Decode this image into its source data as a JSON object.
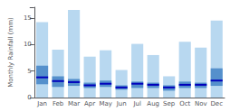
{
  "chart_data": {
    "type": "bar",
    "categories": [
      "Jan",
      "Feb",
      "Mar",
      "Apr",
      "May",
      "Jun",
      "Jul",
      "Aug",
      "Sep",
      "Oct",
      "Nov",
      "Dec"
    ],
    "ylabel": "Monthly Rainfall (mm)",
    "series": [
      {
        "type": "bar",
        "color": "#b8d8f0",
        "values": [
          14.2,
          9.0,
          16.5,
          7.7,
          8.9,
          5.2,
          10.1,
          8.0,
          4.0,
          10.5,
          9.4,
          14.5
        ]
      },
      {
        "type": "range",
        "color": "#5590cc",
        "low": [
          2.5,
          2.0,
          2.2,
          1.8,
          2.0,
          1.5,
          1.8,
          1.8,
          1.3,
          1.8,
          1.8,
          2.2
        ],
        "high": [
          6.0,
          4.0,
          3.5,
          2.8,
          3.2,
          2.3,
          3.0,
          2.8,
          2.3,
          3.0,
          2.8,
          5.5
        ]
      },
      {
        "type": "median",
        "color": "#0000bb",
        "values": [
          3.8,
          3.1,
          2.9,
          2.3,
          2.6,
          1.9,
          2.6,
          2.4,
          1.9,
          2.4,
          2.4,
          3.2
        ]
      }
    ],
    "ylim": [
      0,
      17
    ],
    "yticks": [
      0,
      5,
      10,
      15
    ],
    "grid": false
  }
}
